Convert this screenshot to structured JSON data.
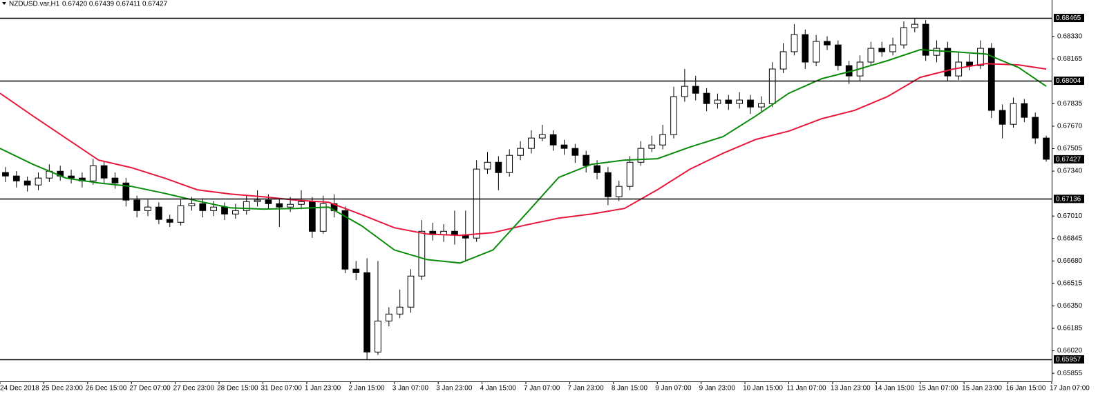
{
  "chart_data": {
    "type": "candlestick",
    "title": "NZDUSD.var,H1",
    "subtitle": "0.67420 0.67439 0.67411 0.67427",
    "xlim": [
      -1,
      383
    ],
    "ylim": [
      0.65795,
      0.68597
    ],
    "xticks": [
      {
        "value": -1,
        "label": "24 Dec 2018"
      },
      {
        "value": 15,
        "label": "25 Dec 23:00"
      },
      {
        "value": 31,
        "label": "26 Dec 15:00"
      },
      {
        "value": 47,
        "label": "27 Dec 07:00"
      },
      {
        "value": 63,
        "label": "27 Dec 23:00"
      },
      {
        "value": 79,
        "label": "28 Dec 15:00"
      },
      {
        "value": 95,
        "label": "31 Dec 07:00"
      },
      {
        "value": 111,
        "label": "1 Jan 23:00"
      },
      {
        "value": 127,
        "label": "2 Jan 15:00"
      },
      {
        "value": 143,
        "label": "3 Jan 07:00"
      },
      {
        "value": 159,
        "label": "3 Jan 23:00"
      },
      {
        "value": 175,
        "label": "4 Jan 15:00"
      },
      {
        "value": 191,
        "label": "7 Jan 07:00"
      },
      {
        "value": 207,
        "label": "7 Jan 23:00"
      },
      {
        "value": 223,
        "label": "8 Jan 15:00"
      },
      {
        "value": 239,
        "label": "9 Jan 07:00"
      },
      {
        "value": 255,
        "label": "9 Jan 23:00"
      },
      {
        "value": 271,
        "label": "10 Jan 15:00"
      },
      {
        "value": 287,
        "label": "11 Jan 07:00"
      },
      {
        "value": 303,
        "label": "13 Jan 23:00"
      },
      {
        "value": 319,
        "label": "14 Jan 15:00"
      },
      {
        "value": 335,
        "label": "15 Jan 07:00"
      },
      {
        "value": 351,
        "label": "15 Jan 23:00"
      },
      {
        "value": 367,
        "label": "16 Jan 15:00"
      },
      {
        "value": 383,
        "label": "17 Jan 07:00"
      }
    ],
    "yticks": [
      {
        "value": 0.6833,
        "label": "0.68330"
      },
      {
        "value": 0.68165,
        "label": "0.68165"
      },
      {
        "value": 0.67835,
        "label": "0.67835"
      },
      {
        "value": 0.6767,
        "label": "0.67670"
      },
      {
        "value": 0.67505,
        "label": "0.67505"
      },
      {
        "value": 0.6734,
        "label": "0.67340"
      },
      {
        "value": 0.6701,
        "label": "0.67010"
      },
      {
        "value": 0.66845,
        "label": "0.66845"
      },
      {
        "value": 0.6668,
        "label": "0.66680"
      },
      {
        "value": 0.66515,
        "label": "0.66515"
      },
      {
        "value": 0.6635,
        "label": "0.66350"
      },
      {
        "value": 0.66185,
        "label": "0.66185"
      },
      {
        "value": 0.6602,
        "label": "0.66020"
      },
      {
        "value": 0.65855,
        "label": "0.65855"
      }
    ],
    "hlines": [
      0.68465,
      0.68004,
      0.67136,
      0.65957
    ],
    "x": [
      1,
      5,
      9,
      13,
      17,
      21,
      25,
      29,
      33,
      37,
      41,
      45,
      49,
      53,
      57,
      61,
      65,
      69,
      73,
      77,
      81,
      85,
      89,
      93,
      97,
      101,
      105,
      109,
      113,
      117,
      121,
      125,
      129,
      133,
      137,
      141,
      145,
      149,
      153,
      157,
      161,
      165,
      169,
      173,
      177,
      181,
      185,
      189,
      193,
      197,
      201,
      205,
      209,
      213,
      217,
      221,
      225,
      229,
      233,
      237,
      241,
      245,
      249,
      253,
      257,
      261,
      265,
      269,
      273,
      277,
      281,
      285,
      289,
      293,
      297,
      301,
      305,
      309,
      313,
      317,
      321,
      325,
      329,
      333,
      337,
      341,
      345,
      349,
      353,
      357,
      361,
      365,
      369,
      373,
      377,
      381
    ],
    "open": [
      0.6733,
      0.67304,
      0.67268,
      0.67238,
      0.67289,
      0.67339,
      0.67304,
      0.67289,
      0.67268,
      0.6738,
      0.67289,
      0.67253,
      0.67127,
      0.6705,
      0.67076,
      0.66985,
      0.66964,
      0.67086,
      0.67101,
      0.6705,
      0.67076,
      0.67025,
      0.6705,
      0.67116,
      0.67127,
      0.67101,
      0.67076,
      0.67096,
      0.67116,
      0.66898,
      0.67101,
      0.6705,
      0.6662,
      0.66594,
      0.66011,
      0.66239,
      0.6629,
      0.66341,
      0.66569,
      0.66898,
      0.66873,
      0.66898,
      0.66873,
      0.66848,
      0.67355,
      0.67405,
      0.67329,
      0.67456,
      0.67507,
      0.67583,
      0.67608,
      0.67532,
      0.67507,
      0.67456,
      0.6738,
      0.67329,
      0.67152,
      0.67228,
      0.67405,
      0.67507,
      0.67532,
      0.67608,
      0.67887,
      0.67963,
      0.67912,
      0.67836,
      0.67862,
      0.67836,
      0.67862,
      0.67811,
      0.67836,
      0.6809,
      0.68217,
      0.68343,
      0.68141,
      0.68293,
      0.68267,
      0.68115,
      0.68039,
      0.68141,
      0.68242,
      0.68217,
      0.68267,
      0.68394,
      0.68419,
      0.68191,
      0.68242,
      0.68039,
      0.68141,
      0.68115,
      0.68242,
      0.67786,
      0.67684,
      0.67836,
      0.67735,
      0.67583
    ],
    "high": [
      0.6737,
      0.6734,
      0.673,
      0.6733,
      0.6739,
      0.6738,
      0.6735,
      0.6733,
      0.67431,
      0.6741,
      0.6733,
      0.6729,
      0.6716,
      0.6713,
      0.6711,
      0.6702,
      0.6713,
      0.6715,
      0.6714,
      0.6712,
      0.6711,
      0.671,
      0.6716,
      0.672,
      0.6717,
      0.6714,
      0.6715,
      0.672,
      0.6715,
      0.6716,
      0.6717,
      0.6708,
      0.6668,
      0.667,
      0.6668,
      0.6634,
      0.6647,
      0.6662,
      0.6698,
      0.6696,
      0.6695,
      0.6705,
      0.6705,
      0.6742,
      0.6748,
      0.6745,
      0.675,
      0.6756,
      0.6764,
      0.6768,
      0.6764,
      0.6757,
      0.6754,
      0.6749,
      0.6742,
      0.6737,
      0.6727,
      0.6745,
      0.6756,
      0.676,
      0.6768,
      0.6796,
      0.6809,
      0.6804,
      0.6795,
      0.6791,
      0.679,
      0.6792,
      0.679,
      0.6789,
      0.6814,
      0.6828,
      0.6842,
      0.6838,
      0.6834,
      0.6833,
      0.683,
      0.6815,
      0.6819,
      0.6829,
      0.6829,
      0.6832,
      0.6844,
      0.68465,
      0.6845,
      0.683,
      0.6829,
      0.6821,
      0.682,
      0.683,
      0.6828,
      0.6783,
      0.6788,
      0.6787,
      0.6777,
      0.676
    ],
    "low": [
      0.6726,
      0.6722,
      0.6719,
      0.672,
      0.6726,
      0.6727,
      0.6725,
      0.6722,
      0.6724,
      0.6725,
      0.6721,
      0.6708,
      0.67,
      0.6701,
      0.6695,
      0.6693,
      0.6694,
      0.6705,
      0.67,
      0.6701,
      0.6698,
      0.6699,
      0.6702,
      0.6708,
      0.6706,
      0.6693,
      0.6704,
      0.6706,
      0.6685,
      0.6688,
      0.67,
      0.6659,
      0.6654,
      0.65957,
      0.6599,
      0.662,
      0.6626,
      0.663,
      0.6654,
      0.6683,
      0.6682,
      0.668,
      0.6668,
      0.6682,
      0.6732,
      0.672,
      0.673,
      0.6742,
      0.6747,
      0.6756,
      0.6749,
      0.6746,
      0.674,
      0.6733,
      0.6728,
      0.6709,
      0.6712,
      0.672,
      0.6738,
      0.6748,
      0.675,
      0.6758,
      0.6785,
      0.6786,
      0.6778,
      0.678,
      0.6779,
      0.678,
      0.6776,
      0.6778,
      0.6781,
      0.6806,
      0.6819,
      0.6809,
      0.6811,
      0.6823,
      0.6808,
      0.6798,
      0.68,
      0.6812,
      0.6818,
      0.6819,
      0.6824,
      0.6836,
      0.6815,
      0.6814,
      0.68,
      0.6801,
      0.6808,
      0.6809,
      0.6773,
      0.6758,
      0.6766,
      0.677,
      0.6754,
      0.6741
    ],
    "close": [
      0.67304,
      0.67268,
      0.67238,
      0.67289,
      0.67339,
      0.67304,
      0.67289,
      0.67268,
      0.6738,
      0.67289,
      0.67253,
      0.67127,
      0.6705,
      0.67076,
      0.66985,
      0.66964,
      0.67086,
      0.67101,
      0.6705,
      0.67076,
      0.67025,
      0.6705,
      0.67116,
      0.67127,
      0.67101,
      0.67076,
      0.67096,
      0.67116,
      0.66898,
      0.67101,
      0.6705,
      0.6662,
      0.66594,
      0.66011,
      0.66239,
      0.6629,
      0.66341,
      0.66569,
      0.66898,
      0.66873,
      0.66898,
      0.66873,
      0.66848,
      0.67355,
      0.67405,
      0.67329,
      0.67456,
      0.67507,
      0.67583,
      0.67608,
      0.67532,
      0.67507,
      0.67456,
      0.6738,
      0.67329,
      0.67152,
      0.67228,
      0.67405,
      0.67507,
      0.67532,
      0.67608,
      0.67887,
      0.67963,
      0.67912,
      0.67836,
      0.67862,
      0.67836,
      0.67862,
      0.67811,
      0.67836,
      0.6809,
      0.68217,
      0.68343,
      0.68141,
      0.68293,
      0.68267,
      0.68115,
      0.68039,
      0.68141,
      0.68242,
      0.68217,
      0.68267,
      0.68394,
      0.68419,
      0.68191,
      0.68242,
      0.68039,
      0.68141,
      0.68115,
      0.68242,
      0.67786,
      0.67684,
      0.67836,
      0.67735,
      0.67583,
      0.67427
    ],
    "ma_lines": [
      {
        "color": "#e8173c",
        "x": [
          -1,
          11,
          23,
          35,
          47,
          59,
          71,
          83,
          95,
          107,
          119,
          131,
          143,
          155,
          167,
          179,
          191,
          203,
          215,
          227,
          239,
          251,
          263,
          275,
          287,
          299,
          311,
          323,
          335,
          347,
          359,
          371,
          381
        ],
        "values": [
          0.67912,
          0.67745,
          0.67583,
          0.67421,
          0.67365,
          0.67289,
          0.67203,
          0.67172,
          0.67152,
          0.67127,
          0.67111,
          0.6702,
          0.66924,
          0.66878,
          0.66868,
          0.66888,
          0.66944,
          0.66995,
          0.67025,
          0.67066,
          0.67203,
          0.67355,
          0.67471,
          0.67573,
          0.67634,
          0.67725,
          0.67786,
          0.67887,
          0.68029,
          0.6809,
          0.6813,
          0.6812,
          0.6809
        ]
      },
      {
        "color": "#0a8a0a",
        "x": [
          -1,
          11,
          23,
          35,
          47,
          59,
          71,
          83,
          95,
          107,
          119,
          131,
          143,
          155,
          167,
          179,
          191,
          203,
          215,
          227,
          239,
          251,
          263,
          275,
          287,
          299,
          311,
          323,
          335,
          347,
          359,
          371,
          381
        ],
        "values": [
          0.67507,
          0.6739,
          0.67289,
          0.67253,
          0.67228,
          0.67177,
          0.67121,
          0.67071,
          0.67061,
          0.67066,
          0.67076,
          0.66939,
          0.66761,
          0.6669,
          0.66665,
          0.66761,
          0.67025,
          0.67294,
          0.6739,
          0.67421,
          0.67431,
          0.67517,
          0.67593,
          0.67745,
          0.67912,
          0.68019,
          0.6808,
          0.68151,
          0.68232,
          0.68217,
          0.68201,
          0.681,
          0.67963
        ]
      }
    ]
  }
}
